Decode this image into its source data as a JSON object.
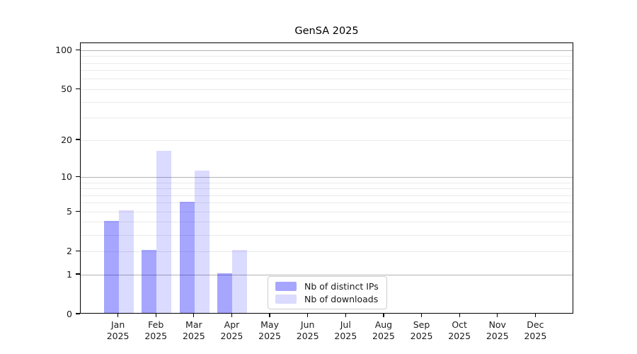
{
  "chart_data": {
    "type": "bar",
    "title": "GenSA 2025",
    "x": {
      "months": [
        "Jan",
        "Feb",
        "Mar",
        "Apr",
        "May",
        "Jun",
        "Jul",
        "Aug",
        "Sep",
        "Oct",
        "Nov",
        "Dec"
      ],
      "year": "2025"
    },
    "series": [
      {
        "name": "Nb of distinct IPs",
        "color": "rgba(0,0,255,0.35)",
        "hex_on_white": "#a6a6fa",
        "values": [
          4,
          2,
          6,
          1,
          0,
          0,
          0,
          0,
          0,
          0,
          0,
          0
        ]
      },
      {
        "name": "Nb of downloads",
        "color": "rgba(0,0,255,0.14)",
        "hex_on_white": "#dbdbfa",
        "values": [
          5,
          16,
          11,
          2,
          0,
          0,
          0,
          0,
          0,
          0,
          0,
          0
        ]
      }
    ],
    "y_axis": {
      "scale": "log1p",
      "tick_values": [
        0,
        1,
        2,
        5,
        10,
        20,
        50,
        100
      ],
      "major_grid_values": [
        1,
        10,
        100
      ],
      "minor_grid_values": [
        2,
        3,
        4,
        5,
        6,
        7,
        8,
        9,
        20,
        30,
        40,
        50,
        60,
        70,
        80,
        90
      ],
      "ymin": 0,
      "ymax": 113,
      "major_grid_color": "#b3b3b3",
      "minor_grid_color": "#eaeaea"
    },
    "legend": {
      "position": "lower center-right inside plot",
      "entries": [
        "Nb of distinct IPs",
        "Nb of downloads"
      ]
    },
    "grid": "horizontal only",
    "axis_color": "#000000",
    "text_color": "#1a1a1a",
    "background_color": "#ffffff"
  }
}
